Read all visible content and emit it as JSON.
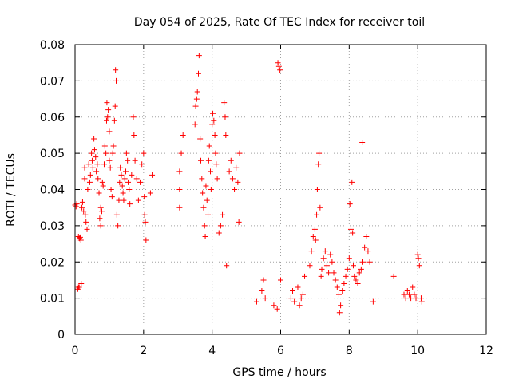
{
  "chart_data": {
    "type": "scatter",
    "title": "Day 054 of 2025, Rate Of TEC Index for receiver toil",
    "xlabel": "GPS time / hours",
    "ylabel": "ROTI / TECUs",
    "xlim": [
      0,
      12
    ],
    "ylim": [
      0,
      0.08
    ],
    "xticks": [
      0,
      2,
      4,
      6,
      8,
      10,
      12
    ],
    "yticks": [
      0,
      0.01,
      0.02,
      0.03,
      0.04,
      0.05,
      0.06,
      0.07,
      0.08
    ],
    "xtick_labels": [
      "0",
      "2",
      "4",
      "6",
      "8",
      "10",
      "12"
    ],
    "ytick_labels": [
      "0",
      "0.01",
      "0.02",
      "0.03",
      "0.04",
      "0.05",
      "0.06",
      "0.07",
      "0.08"
    ],
    "grid": true,
    "marker": "+",
    "color": "#ff0000",
    "series": [
      {
        "name": "ROTI",
        "points": [
          [
            0.0,
            0.0357
          ],
          [
            0.03,
            0.0353
          ],
          [
            0.05,
            0.036
          ],
          [
            0.08,
            0.0125
          ],
          [
            0.1,
            0.013
          ],
          [
            0.12,
            0.013
          ],
          [
            0.1,
            0.027
          ],
          [
            0.13,
            0.0265
          ],
          [
            0.15,
            0.0268
          ],
          [
            0.17,
            0.026
          ],
          [
            0.18,
            0.014
          ],
          [
            0.2,
            0.035
          ],
          [
            0.22,
            0.0365
          ],
          [
            0.25,
            0.034
          ],
          [
            0.28,
            0.043
          ],
          [
            0.28,
            0.046
          ],
          [
            0.3,
            0.033
          ],
          [
            0.32,
            0.031
          ],
          [
            0.35,
            0.029
          ],
          [
            0.37,
            0.04
          ],
          [
            0.4,
            0.047
          ],
          [
            0.43,
            0.042
          ],
          [
            0.45,
            0.044
          ],
          [
            0.48,
            0.05
          ],
          [
            0.5,
            0.048
          ],
          [
            0.52,
            0.046
          ],
          [
            0.55,
            0.054
          ],
          [
            0.57,
            0.051
          ],
          [
            0.6,
            0.049
          ],
          [
            0.62,
            0.045
          ],
          [
            0.65,
            0.047
          ],
          [
            0.67,
            0.043
          ],
          [
            0.7,
            0.039
          ],
          [
            0.72,
            0.032
          ],
          [
            0.75,
            0.03
          ],
          [
            0.75,
            0.035
          ],
          [
            0.78,
            0.034
          ],
          [
            0.8,
            0.042
          ],
          [
            0.82,
            0.041
          ],
          [
            0.85,
            0.047
          ],
          [
            0.87,
            0.052
          ],
          [
            0.9,
            0.05
          ],
          [
            0.92,
            0.059
          ],
          [
            0.93,
            0.064
          ],
          [
            0.95,
            0.06
          ],
          [
            0.97,
            0.062
          ],
          [
            1.0,
            0.048
          ],
          [
            1.0,
            0.056
          ],
          [
            1.03,
            0.046
          ],
          [
            1.05,
            0.04
          ],
          [
            1.08,
            0.038
          ],
          [
            1.1,
            0.05
          ],
          [
            1.12,
            0.052
          ],
          [
            1.15,
            0.059
          ],
          [
            1.17,
            0.063
          ],
          [
            1.18,
            0.073
          ],
          [
            1.2,
            0.07
          ],
          [
            1.22,
            0.033
          ],
          [
            1.25,
            0.03
          ],
          [
            1.28,
            0.037
          ],
          [
            1.3,
            0.042
          ],
          [
            1.32,
            0.046
          ],
          [
            1.35,
            0.044
          ],
          [
            1.38,
            0.041
          ],
          [
            1.4,
            0.039
          ],
          [
            1.42,
            0.037
          ],
          [
            1.45,
            0.043
          ],
          [
            1.48,
            0.045
          ],
          [
            1.5,
            0.05
          ],
          [
            1.53,
            0.048
          ],
          [
            1.55,
            0.042
          ],
          [
            1.58,
            0.04
          ],
          [
            1.6,
            0.036
          ],
          [
            1.65,
            0.044
          ],
          [
            1.7,
            0.06
          ],
          [
            1.72,
            0.055
          ],
          [
            1.75,
            0.048
          ],
          [
            1.8,
            0.043
          ],
          [
            1.85,
            0.037
          ],
          [
            1.9,
            0.042
          ],
          [
            1.95,
            0.047
          ],
          [
            2.0,
            0.05
          ],
          [
            2.02,
            0.038
          ],
          [
            2.03,
            0.033
          ],
          [
            2.05,
            0.031
          ],
          [
            2.07,
            0.026
          ],
          [
            2.2,
            0.039
          ],
          [
            2.25,
            0.044
          ],
          [
            3.05,
            0.045
          ],
          [
            3.05,
            0.035
          ],
          [
            3.1,
            0.05
          ],
          [
            3.15,
            0.055
          ],
          [
            3.05,
            0.04
          ],
          [
            3.5,
            0.058
          ],
          [
            3.52,
            0.063
          ],
          [
            3.55,
            0.065
          ],
          [
            3.57,
            0.067
          ],
          [
            3.6,
            0.072
          ],
          [
            3.62,
            0.077
          ],
          [
            3.65,
            0.054
          ],
          [
            3.67,
            0.048
          ],
          [
            3.7,
            0.043
          ],
          [
            3.72,
            0.039
          ],
          [
            3.75,
            0.035
          ],
          [
            3.78,
            0.03
          ],
          [
            3.8,
            0.027
          ],
          [
            3.82,
            0.041
          ],
          [
            3.85,
            0.037
          ],
          [
            3.88,
            0.033
          ],
          [
            3.9,
            0.048
          ],
          [
            3.92,
            0.052
          ],
          [
            3.95,
            0.045
          ],
          [
            3.97,
            0.04
          ],
          [
            4.0,
            0.058
          ],
          [
            4.02,
            0.061
          ],
          [
            4.05,
            0.059
          ],
          [
            4.08,
            0.055
          ],
          [
            4.1,
            0.05
          ],
          [
            4.12,
            0.047
          ],
          [
            4.15,
            0.043
          ],
          [
            4.2,
            0.028
          ],
          [
            4.25,
            0.03
          ],
          [
            4.3,
            0.033
          ],
          [
            4.35,
            0.064
          ],
          [
            4.38,
            0.06
          ],
          [
            4.4,
            0.055
          ],
          [
            4.42,
            0.019
          ],
          [
            4.5,
            0.045
          ],
          [
            4.55,
            0.048
          ],
          [
            4.6,
            0.043
          ],
          [
            4.65,
            0.04
          ],
          [
            4.7,
            0.046
          ],
          [
            4.75,
            0.042
          ],
          [
            4.8,
            0.05
          ],
          [
            4.78,
            0.031
          ],
          [
            5.3,
            0.009
          ],
          [
            5.45,
            0.012
          ],
          [
            5.5,
            0.015
          ],
          [
            5.55,
            0.01
          ],
          [
            5.8,
            0.008
          ],
          [
            5.9,
            0.007
          ],
          [
            5.92,
            0.075
          ],
          [
            5.95,
            0.074
          ],
          [
            5.98,
            0.073
          ],
          [
            6.0,
            0.015
          ],
          [
            6.3,
            0.01
          ],
          [
            6.35,
            0.012
          ],
          [
            6.4,
            0.009
          ],
          [
            6.5,
            0.013
          ],
          [
            6.55,
            0.008
          ],
          [
            6.6,
            0.01
          ],
          [
            6.65,
            0.011
          ],
          [
            6.7,
            0.016
          ],
          [
            6.85,
            0.019
          ],
          [
            6.9,
            0.023
          ],
          [
            6.95,
            0.027
          ],
          [
            7.0,
            0.029
          ],
          [
            7.02,
            0.026
          ],
          [
            7.05,
            0.033
          ],
          [
            7.07,
            0.04
          ],
          [
            7.1,
            0.047
          ],
          [
            7.12,
            0.05
          ],
          [
            7.15,
            0.035
          ],
          [
            7.18,
            0.016
          ],
          [
            7.2,
            0.018
          ],
          [
            7.25,
            0.021
          ],
          [
            7.3,
            0.023
          ],
          [
            7.35,
            0.019
          ],
          [
            7.4,
            0.017
          ],
          [
            7.45,
            0.022
          ],
          [
            7.5,
            0.02
          ],
          [
            7.55,
            0.017
          ],
          [
            7.6,
            0.015
          ],
          [
            7.65,
            0.013
          ],
          [
            7.7,
            0.011
          ],
          [
            7.72,
            0.006
          ],
          [
            7.75,
            0.008
          ],
          [
            7.8,
            0.012
          ],
          [
            7.85,
            0.014
          ],
          [
            7.9,
            0.016
          ],
          [
            7.95,
            0.018
          ],
          [
            8.0,
            0.021
          ],
          [
            8.02,
            0.036
          ],
          [
            8.05,
            0.029
          ],
          [
            8.08,
            0.042
          ],
          [
            8.1,
            0.028
          ],
          [
            8.12,
            0.019
          ],
          [
            8.15,
            0.016
          ],
          [
            8.2,
            0.015
          ],
          [
            8.25,
            0.014
          ],
          [
            8.3,
            0.017
          ],
          [
            8.35,
            0.018
          ],
          [
            8.38,
            0.053
          ],
          [
            8.4,
            0.02
          ],
          [
            8.45,
            0.024
          ],
          [
            8.5,
            0.027
          ],
          [
            8.55,
            0.023
          ],
          [
            8.6,
            0.02
          ],
          [
            8.7,
            0.009
          ],
          [
            9.3,
            0.016
          ],
          [
            9.6,
            0.011
          ],
          [
            9.65,
            0.01
          ],
          [
            9.7,
            0.012
          ],
          [
            9.75,
            0.011
          ],
          [
            9.8,
            0.01
          ],
          [
            9.85,
            0.013
          ],
          [
            9.9,
            0.011
          ],
          [
            9.95,
            0.01
          ],
          [
            10.0,
            0.022
          ],
          [
            10.02,
            0.021
          ],
          [
            10.05,
            0.019
          ],
          [
            10.1,
            0.01
          ],
          [
            10.12,
            0.009
          ]
        ]
      }
    ]
  }
}
